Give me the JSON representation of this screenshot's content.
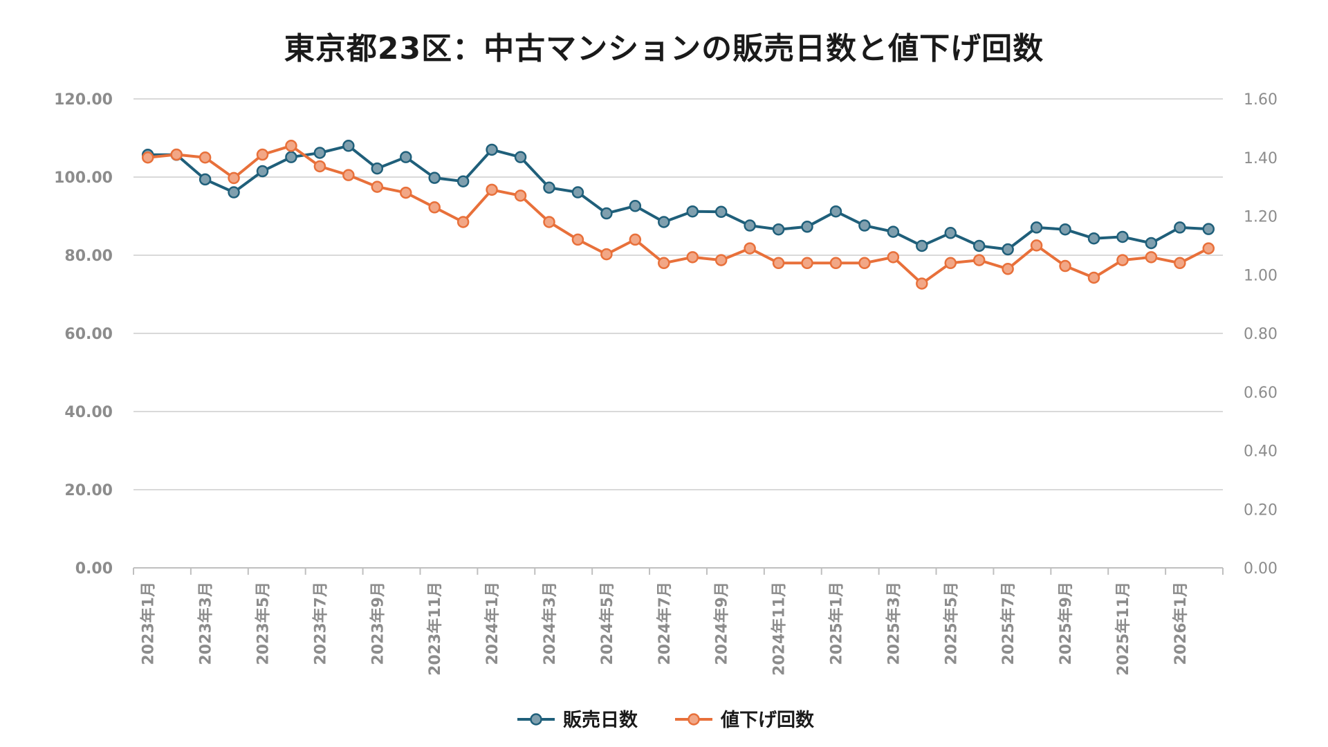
{
  "chart_data": {
    "type": "line",
    "title": "東京都23区：中古マンションの販売日数と値下げ回数",
    "x": [
      "2023年1月",
      "2023年2月",
      "2023年3月",
      "2023年4月",
      "2023年5月",
      "2023年6月",
      "2023年7月",
      "2023年8月",
      "2023年9月",
      "2023年10月",
      "2023年11月",
      "2023年12月",
      "2024年1月",
      "2024年2月",
      "2024年3月",
      "2024年4月",
      "2024年5月",
      "2024年6月",
      "2024年7月",
      "2024年8月",
      "2024年9月",
      "2024年10月",
      "2024年11月",
      "2024年12月",
      "2025年1月",
      "2025年2月",
      "2025年3月",
      "2025年4月",
      "2025年5月",
      "2025年6月",
      "2025年7月",
      "2025年8月",
      "2025年9月",
      "2025年10月",
      "2025年11月",
      "2025年12月",
      "2026年1月",
      "2026年2月"
    ],
    "x_tick_labels": [
      "2023年1月",
      "2023年3月",
      "2023年5月",
      "2023年7月",
      "2023年9月",
      "2023年11月",
      "2024年1月",
      "2024年3月",
      "2024年5月",
      "2024年7月",
      "2024年9月",
      "2024年11月",
      "2025年1月",
      "2025年3月",
      "2025年5月",
      "2025年7月",
      "2025年9月",
      "2025年11月",
      "2026年1月"
    ],
    "y_left": {
      "ylim": [
        0,
        120
      ],
      "ticks": [
        "0.00",
        "20.00",
        "40.00",
        "60.00",
        "80.00",
        "100.00",
        "120.00"
      ]
    },
    "y_right": {
      "ylim": [
        0,
        1.6
      ],
      "ticks": [
        "0.00",
        "0.20",
        "0.40",
        "0.60",
        "0.80",
        "1.00",
        "1.20",
        "1.40",
        "1.60"
      ]
    },
    "grid": true,
    "legend_position": "bottom",
    "series": [
      {
        "name": "販売日数",
        "axis": "left",
        "color": "#1f5f7a",
        "marker_color": "#7f9fae",
        "values": [
          105.7,
          105.7,
          99.4,
          96.1,
          101.5,
          105.1,
          106.2,
          108.0,
          102.2,
          105.1,
          99.8,
          98.9,
          107.0,
          105.1,
          97.3,
          96.1,
          90.7,
          92.6,
          88.5,
          91.2,
          91.1,
          87.6,
          86.6,
          87.3,
          91.2,
          87.6,
          86.0,
          82.4,
          85.7,
          82.4,
          81.5,
          87.1,
          86.6,
          84.3,
          84.7,
          83.1,
          87.1,
          86.7
        ]
      },
      {
        "name": "値下げ回数",
        "axis": "right",
        "color": "#e8703a",
        "marker_color": "#f2a786",
        "values": [
          1.4,
          1.41,
          1.4,
          1.33,
          1.41,
          1.44,
          1.37,
          1.34,
          1.3,
          1.28,
          1.23,
          1.18,
          1.29,
          1.27,
          1.18,
          1.12,
          1.07,
          1.12,
          1.04,
          1.06,
          1.05,
          1.09,
          1.04,
          1.04,
          1.04,
          1.04,
          1.06,
          0.97,
          1.04,
          1.05,
          1.02,
          1.1,
          1.03,
          0.99,
          1.05,
          1.06,
          1.04,
          1.09
        ]
      }
    ]
  }
}
